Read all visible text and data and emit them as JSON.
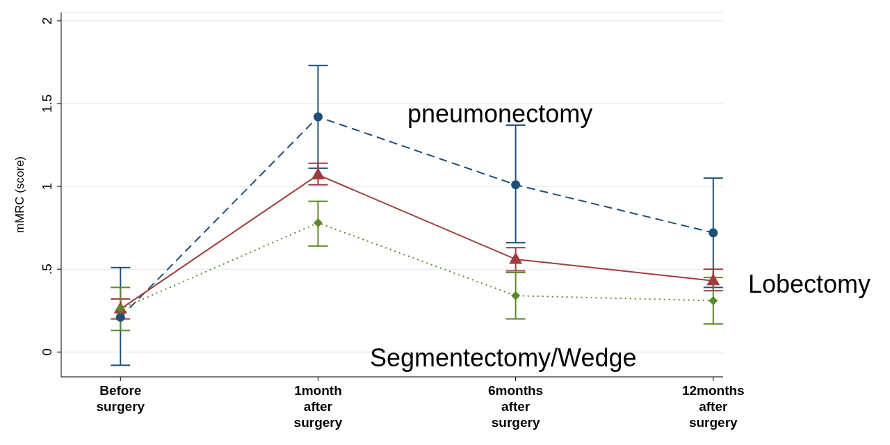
{
  "chart_data": {
    "type": "line",
    "ylabel": "mMRC (score)",
    "categories": [
      "Before surgery",
      "1month after surgery",
      "6months after surgery",
      "12months after surgery"
    ],
    "series": [
      {
        "name": "pneumonectomy",
        "color": "#1f4e79",
        "line_style": "dashed",
        "marker": "circle",
        "values": [
          0.21,
          1.42,
          1.01,
          0.72
        ],
        "errors": [
          [
            -0.08,
            0.51
          ],
          [
            1.11,
            1.73
          ],
          [
            0.66,
            1.37
          ],
          [
            0.39,
            1.05
          ]
        ]
      },
      {
        "name": "Lobectomy",
        "color": "#a03c3c",
        "line_style": "solid",
        "marker": "triangle",
        "values": [
          0.26,
          1.07,
          0.56,
          0.43
        ],
        "errors": [
          [
            0.2,
            0.32
          ],
          [
            1.01,
            1.14
          ],
          [
            0.49,
            0.63
          ],
          [
            0.37,
            0.5
          ]
        ]
      },
      {
        "name": "Segmentectomy/Wedge",
        "color": "#5a8a2a",
        "line_style": "dotted",
        "marker": "diamond",
        "values": [
          0.26,
          0.78,
          0.34,
          0.31
        ],
        "errors": [
          [
            0.13,
            0.39
          ],
          [
            0.64,
            0.91
          ],
          [
            0.2,
            0.48
          ],
          [
            0.17,
            0.45
          ]
        ]
      }
    ],
    "ylim": [
      -0.15,
      2.05
    ],
    "yticks": [
      0,
      {
        "value": 0.5,
        "label": ".5"
      },
      1,
      1.5,
      2
    ],
    "grid": "y"
  }
}
